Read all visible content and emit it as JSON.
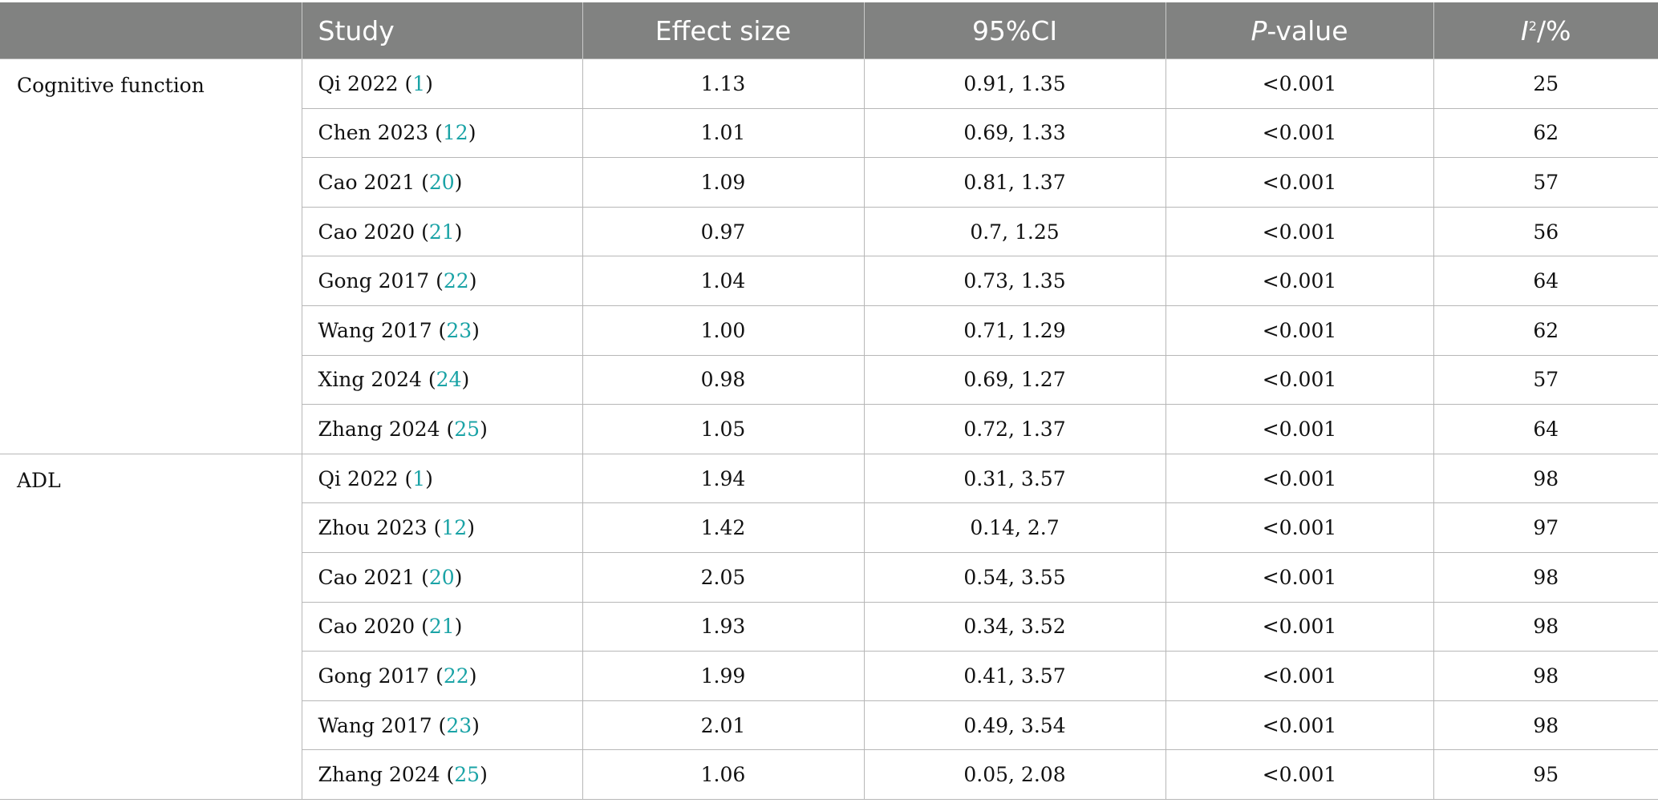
{
  "header": {
    "group": "",
    "study": "Study",
    "effect_size": "Effect size",
    "ci": "95%CI",
    "p_italic": "P",
    "p_rest": "-value",
    "i2_italic": "I",
    "i2_sup": "2",
    "i2_rest": "/%"
  },
  "groups": [
    {
      "label": "Cognitive function",
      "rows": [
        {
          "author": "Qi 2022 (",
          "ref": "1",
          "close": ")",
          "effect": "1.13",
          "ci": "0.91, 1.35",
          "p": "<0.001",
          "i2": "25"
        },
        {
          "author": "Chen 2023 (",
          "ref": "12",
          "close": ")",
          "effect": "1.01",
          "ci": "0.69, 1.33",
          "p": "<0.001",
          "i2": "62"
        },
        {
          "author": "Cao 2021 (",
          "ref": "20",
          "close": ")",
          "effect": "1.09",
          "ci": "0.81, 1.37",
          "p": "<0.001",
          "i2": "57"
        },
        {
          "author": "Cao 2020 (",
          "ref": "21",
          "close": ")",
          "effect": "0.97",
          "ci": "0.7, 1.25",
          "p": "<0.001",
          "i2": "56"
        },
        {
          "author": "Gong 2017 (",
          "ref": "22",
          "close": ")",
          "effect": "1.04",
          "ci": "0.73, 1.35",
          "p": "<0.001",
          "i2": "64"
        },
        {
          "author": "Wang 2017 (",
          "ref": "23",
          "close": ")",
          "effect": "1.00",
          "ci": "0.71, 1.29",
          "p": "<0.001",
          "i2": "62"
        },
        {
          "author": "Xing 2024 (",
          "ref": "24",
          "close": ")",
          "effect": "0.98",
          "ci": "0.69, 1.27",
          "p": "<0.001",
          "i2": "57"
        },
        {
          "author": "Zhang 2024 (",
          "ref": "25",
          "close": ")",
          "effect": "1.05",
          "ci": "0.72, 1.37",
          "p": "<0.001",
          "i2": "64"
        }
      ]
    },
    {
      "label": "ADL",
      "rows": [
        {
          "author": "Qi 2022 (",
          "ref": "1",
          "close": ")",
          "effect": "1.94",
          "ci": "0.31, 3.57",
          "p": "<0.001",
          "i2": "98"
        },
        {
          "author": "Zhou 2023 (",
          "ref": "12",
          "close": ")",
          "effect": "1.42",
          "ci": "0.14, 2.7",
          "p": "<0.001",
          "i2": "97"
        },
        {
          "author": "Cao 2021 (",
          "ref": "20",
          "close": ")",
          "effect": "2.05",
          "ci": "0.54, 3.55",
          "p": "<0.001",
          "i2": "98"
        },
        {
          "author": "Cao 2020 (",
          "ref": "21",
          "close": ")",
          "effect": "1.93",
          "ci": "0.34, 3.52",
          "p": "<0.001",
          "i2": "98"
        },
        {
          "author": "Gong 2017 (",
          "ref": "22",
          "close": ")",
          "effect": "1.99",
          "ci": "0.41, 3.57",
          "p": "<0.001",
          "i2": "98"
        },
        {
          "author": "Wang 2017 (",
          "ref": "23",
          "close": ")",
          "effect": "2.01",
          "ci": "0.49, 3.54",
          "p": "<0.001",
          "i2": "98"
        },
        {
          "author": "Zhang 2024 (",
          "ref": "25",
          "close": ")",
          "effect": "1.06",
          "ci": "0.05, 2.08",
          "p": "<0.001",
          "i2": "95"
        }
      ]
    }
  ]
}
